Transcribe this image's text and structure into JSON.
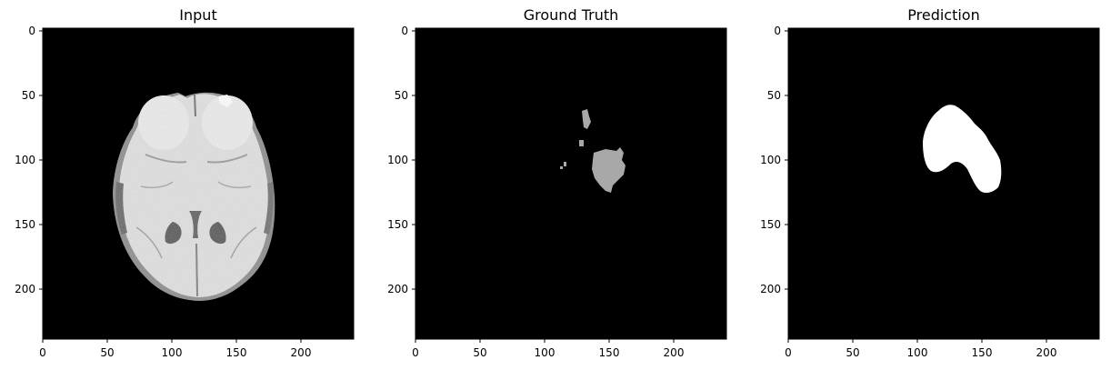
{
  "figure": {
    "panels": [
      {
        "title": "Input",
        "kind": "brain-mri",
        "x_ticks": [
          "0",
          "50",
          "100",
          "150",
          "200"
        ],
        "y_ticks": [
          "0",
          "50",
          "100",
          "150",
          "200"
        ]
      },
      {
        "title": "Ground Truth",
        "kind": "ground-truth-mask",
        "x_ticks": [
          "0",
          "50",
          "100",
          "150",
          "200"
        ],
        "y_ticks": [
          "0",
          "50",
          "100",
          "150",
          "200"
        ]
      },
      {
        "title": "Prediction",
        "kind": "prediction-mask",
        "x_ticks": [
          "0",
          "50",
          "100",
          "150",
          "200"
        ],
        "y_ticks": [
          "0",
          "50",
          "100",
          "150",
          "200"
        ]
      }
    ],
    "colors": {
      "background": "#000000",
      "ground_truth_mask": "#a8a8a8",
      "prediction_mask": "#ffffff",
      "brain_tissue": "#e2e2e2"
    }
  }
}
